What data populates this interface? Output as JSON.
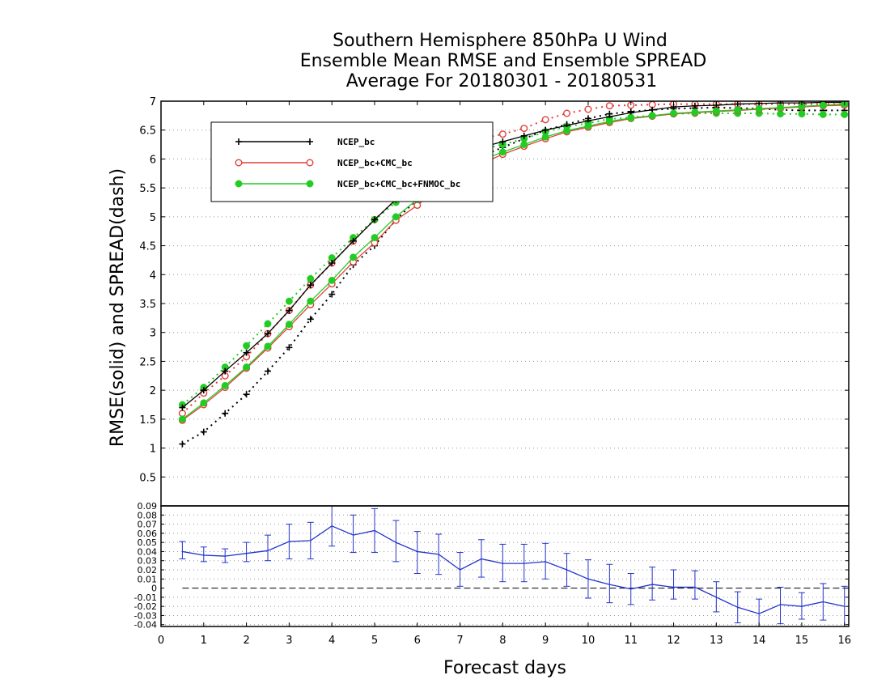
{
  "title_lines": [
    "Southern Hemisphere 850hPa U Wind",
    "Ensemble Mean RMSE and Ensemble SPREAD",
    "Average For 20180301 - 20180531"
  ],
  "chart_data": [
    {
      "type": "line",
      "panel": "top",
      "xlabel": "",
      "ylabel": "RMSE(solid) and SPREAD(dash)",
      "xlim": [
        0,
        16.1
      ],
      "ylim": [
        0,
        7
      ],
      "yticks": [
        "0.5",
        "1",
        "1.5",
        "2",
        "2.5",
        "3",
        "3.5",
        "4",
        "4.5",
        "5",
        "5.5",
        "6",
        "6.5",
        "7"
      ],
      "grid": true,
      "legend_placement": "top-left",
      "x": [
        0.5,
        1,
        1.5,
        2,
        2.5,
        3,
        3.5,
        4,
        4.5,
        5,
        5.5,
        6,
        6.5,
        7,
        7.5,
        8,
        8.5,
        9,
        9.5,
        10,
        10.5,
        11,
        11.5,
        12,
        12.5,
        13,
        13.5,
        14,
        14.5,
        15,
        15.5,
        16
      ],
      "series": [
        {
          "name": "NCEP_bc",
          "color": "#000000",
          "marker": "plus",
          "rmse": [
            1.7,
            2.0,
            2.33,
            2.65,
            2.98,
            3.38,
            3.82,
            4.2,
            4.58,
            4.95,
            5.3,
            5.6,
            5.85,
            6.05,
            6.2,
            6.3,
            6.4,
            6.5,
            6.58,
            6.66,
            6.73,
            6.8,
            6.85,
            6.9,
            6.92,
            6.93,
            6.95,
            6.96,
            6.97,
            6.97,
            6.98,
            6.98
          ],
          "spread": [
            1.07,
            1.28,
            1.6,
            1.93,
            2.33,
            2.74,
            3.23,
            3.66,
            4.17,
            4.5,
            4.95,
            5.3,
            5.6,
            5.85,
            6.05,
            6.2,
            6.35,
            6.5,
            6.6,
            6.7,
            6.78,
            6.82,
            6.85,
            6.87,
            6.88,
            6.89,
            6.88,
            6.87,
            6.85,
            6.84,
            6.84,
            6.84
          ]
        },
        {
          "name": "NCEP_bc+CMC_bc",
          "color": "#e0403a",
          "marker": "open-circle",
          "rmse": [
            1.48,
            1.75,
            2.05,
            2.38,
            2.73,
            3.1,
            3.48,
            3.84,
            4.22,
            4.55,
            4.94,
            5.2,
            5.5,
            5.72,
            5.92,
            6.08,
            6.22,
            6.35,
            6.47,
            6.55,
            6.63,
            6.7,
            6.74,
            6.78,
            6.8,
            6.82,
            6.84,
            6.86,
            6.88,
            6.9,
            6.92,
            6.93
          ],
          "spread": [
            1.6,
            1.95,
            2.25,
            2.58,
            2.98,
            3.38,
            3.82,
            4.2,
            4.58,
            4.95,
            5.3,
            5.62,
            5.93,
            6.18,
            6.35,
            6.43,
            6.53,
            6.68,
            6.79,
            6.86,
            6.92,
            6.93,
            6.94,
            6.95,
            6.95,
            6.95,
            6.95,
            6.95,
            6.95,
            6.95,
            6.95,
            6.95
          ]
        },
        {
          "name": "NCEP_bc+CMC_bc+FNMOC_bc",
          "color": "#22cc22",
          "marker": "filled-circle",
          "rmse": [
            1.5,
            1.78,
            2.08,
            2.4,
            2.76,
            3.14,
            3.54,
            3.9,
            4.3,
            4.64,
            5.0,
            5.3,
            5.58,
            5.8,
            5.98,
            6.12,
            6.25,
            6.38,
            6.49,
            6.57,
            6.65,
            6.71,
            6.75,
            6.79,
            6.81,
            6.83,
            6.85,
            6.87,
            6.89,
            6.91,
            6.93,
            6.95
          ],
          "spread": [
            1.75,
            2.05,
            2.4,
            2.77,
            3.15,
            3.54,
            3.93,
            4.29,
            4.64,
            4.95,
            5.25,
            5.55,
            5.82,
            6.03,
            6.17,
            6.25,
            6.35,
            6.47,
            6.56,
            6.62,
            6.69,
            6.72,
            6.75,
            6.78,
            6.79,
            6.79,
            6.79,
            6.79,
            6.78,
            6.78,
            6.77,
            6.77
          ]
        }
      ]
    },
    {
      "type": "line",
      "panel": "bottom",
      "xlabel": "Forecast days",
      "ylabel": "",
      "xlim": [
        0,
        16.1
      ],
      "ylim": [
        -0.042,
        0.09
      ],
      "xticks": [
        "0",
        "1",
        "2",
        "3",
        "4",
        "5",
        "6",
        "7",
        "8",
        "9",
        "10",
        "11",
        "12",
        "13",
        "14",
        "15",
        "16"
      ],
      "yticks": [
        "-0.04",
        "-0.03",
        "-0.02",
        "-0.01",
        "0",
        "0.01",
        "0.02",
        "0.03",
        "0.04",
        "0.05",
        "0.06",
        "0.07",
        "0.08",
        "0.09"
      ],
      "grid": true,
      "zero_line": true,
      "x": [
        0.5,
        1,
        1.5,
        2,
        2.5,
        3,
        3.5,
        4,
        4.5,
        5,
        5.5,
        6,
        6.5,
        7,
        7.5,
        8,
        8.5,
        9,
        9.5,
        10,
        10.5,
        11,
        11.5,
        12,
        12.5,
        13,
        13.5,
        14,
        14.5,
        15,
        15.5,
        16
      ],
      "series": [
        {
          "color": "#2233cc",
          "values": [
            0.04,
            0.036,
            0.035,
            0.038,
            0.041,
            0.051,
            0.052,
            0.068,
            0.058,
            0.063,
            0.05,
            0.04,
            0.037,
            0.02,
            0.032,
            0.027,
            0.027,
            0.029,
            0.02,
            0.01,
            0.004,
            -0.001,
            0.004,
            0.001,
            0.001,
            -0.01,
            -0.021,
            -0.028,
            -0.018,
            -0.02,
            -0.015,
            -0.02
          ],
          "err_low": [
            0.032,
            0.029,
            0.028,
            0.029,
            0.03,
            0.032,
            0.032,
            0.046,
            0.039,
            0.039,
            0.029,
            0.016,
            0.015,
            0.002,
            0.012,
            0.007,
            0.007,
            0.01,
            0.002,
            -0.011,
            -0.016,
            -0.018,
            -0.013,
            -0.012,
            -0.012,
            -0.026,
            -0.038,
            -0.042,
            -0.039,
            -0.034,
            -0.035,
            -0.042
          ],
          "err_high": [
            0.051,
            0.045,
            0.043,
            0.05,
            0.058,
            0.07,
            0.072,
            0.09,
            0.08,
            0.087,
            0.074,
            0.062,
            0.059,
            0.039,
            0.053,
            0.048,
            0.048,
            0.049,
            0.038,
            0.031,
            0.026,
            0.016,
            0.023,
            0.02,
            0.019,
            0.007,
            -0.004,
            -0.012,
            0.001,
            -0.005,
            0.005,
            0.002
          ]
        }
      ]
    }
  ]
}
